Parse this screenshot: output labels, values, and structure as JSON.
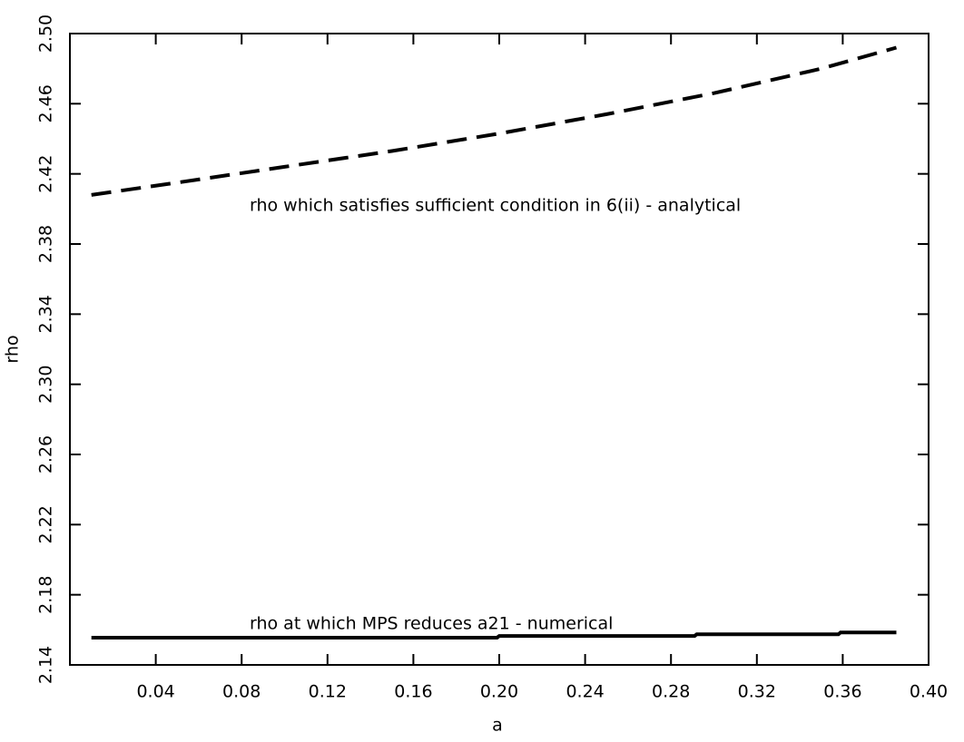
{
  "chart_data": {
    "type": "line",
    "x_label": "a",
    "y_label": "rho",
    "xlim": [
      0,
      0.4
    ],
    "ylim": [
      2.14,
      2.5
    ],
    "xticks": [
      0.04,
      0.08,
      0.12,
      0.16,
      {
        "value": 0.2,
        "label": "0.20"
      },
      0.24,
      0.28,
      0.32,
      0.36,
      {
        "value": 0.4,
        "label": "0.40"
      }
    ],
    "yticks": [
      2.14,
      2.18,
      2.22,
      2.26,
      {
        "value": 2.3,
        "label": "2.30"
      },
      2.34,
      2.38,
      2.42,
      2.46,
      {
        "value": 2.5,
        "label": "2.50"
      }
    ],
    "grid": false,
    "series": [
      {
        "name": "rho which satisfies sufficient condition in 6(ii) - analytical",
        "color": "#000000",
        "style": "dashed",
        "x": [
          0.01,
          0.05,
          0.1,
          0.15,
          0.2,
          0.25,
          0.3,
          0.35,
          0.385
        ],
        "values": [
          2.408,
          2.415,
          2.424,
          2.433,
          2.443,
          2.454,
          2.466,
          2.48,
          2.492
        ]
      },
      {
        "name": "rho at which MPS reduces a21 - numerical",
        "color": "#000000",
        "style": "solid",
        "x": [
          0.01,
          0.199,
          0.2,
          0.291,
          0.292,
          0.358,
          0.359,
          0.385
        ],
        "values": [
          2.1555,
          2.1555,
          2.1565,
          2.1565,
          2.1575,
          2.1575,
          2.1585,
          2.1585
        ]
      }
    ]
  }
}
